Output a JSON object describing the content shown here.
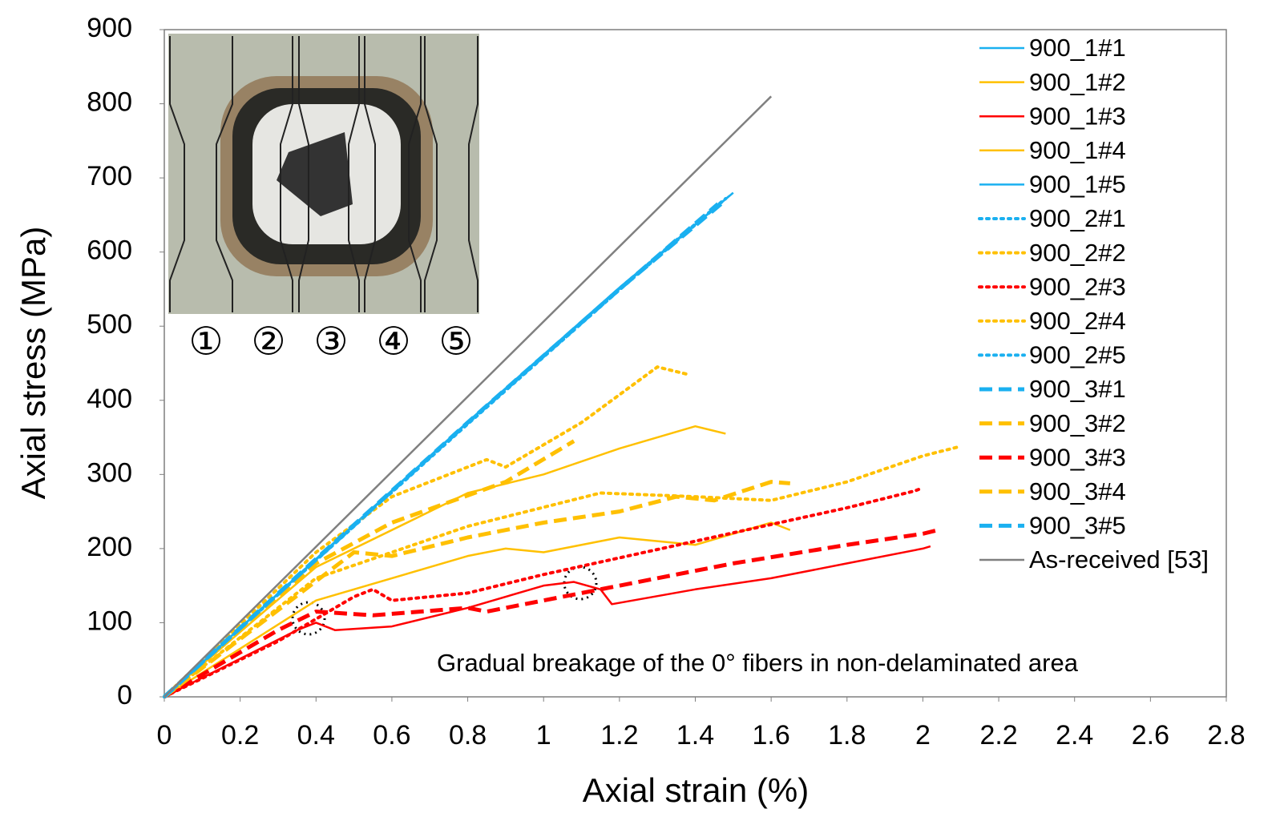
{
  "chart_data": {
    "type": "line",
    "xlabel": "Axial strain (%)",
    "ylabel": "Axial stress (MPa)",
    "xlim": [
      0,
      2.8
    ],
    "ylim": [
      0,
      900
    ],
    "xticks": [
      0,
      0.2,
      0.4,
      0.6,
      0.8,
      1,
      1.2,
      1.4,
      1.6,
      1.8,
      2,
      2.2,
      2.4,
      2.6,
      2.8
    ],
    "yticks": [
      0,
      100,
      200,
      300,
      400,
      500,
      600,
      700,
      800,
      900
    ],
    "legend": "upper right",
    "annotation": "Gradual breakage of the 0° fibers in non-delaminated area",
    "inset_labels": [
      "①",
      "②",
      "③",
      "④",
      "⑤"
    ],
    "inset_label_colors": [
      "#1ab0f0",
      "#ffc000",
      "#ff0000",
      "#ffc000",
      "#1ab0f0"
    ],
    "series": [
      {
        "name": "900_1#1",
        "color": "#1ab0f0",
        "dash": "solid",
        "x": [
          0,
          0.4,
          0.8,
          1.2,
          1.49
        ],
        "values": [
          0,
          186,
          371,
          552,
          676
        ]
      },
      {
        "name": "900_1#2",
        "color": "#ffc000",
        "dash": "solid",
        "x": [
          0,
          0.4,
          0.8,
          1.0,
          1.2,
          1.4,
          1.48
        ],
        "values": [
          0,
          175,
          275,
          300,
          335,
          365,
          355
        ]
      },
      {
        "name": "900_1#3",
        "color": "#ff0000",
        "dash": "solid",
        "x": [
          0,
          0.35,
          0.4,
          0.45,
          0.6,
          0.8,
          1.0,
          1.08,
          1.15,
          1.18,
          1.4,
          1.6,
          1.8,
          2.0,
          2.02
        ],
        "values": [
          0,
          90,
          100,
          90,
          95,
          120,
          150,
          155,
          145,
          125,
          145,
          160,
          180,
          200,
          203
        ]
      },
      {
        "name": "900_1#4",
        "color": "#ffc000",
        "dash": "solid",
        "x": [
          0,
          0.4,
          0.8,
          0.9,
          1.0,
          1.2,
          1.4,
          1.6,
          1.65
        ],
        "values": [
          0,
          130,
          190,
          200,
          195,
          215,
          205,
          235,
          225
        ]
      },
      {
        "name": "900_1#5",
        "color": "#1ab0f0",
        "dash": "solid",
        "x": [
          0,
          0.4,
          0.8,
          1.2,
          1.5
        ],
        "values": [
          0,
          185,
          370,
          550,
          680
        ]
      },
      {
        "name": "900_2#1",
        "color": "#1ab0f0",
        "dash": "dotted",
        "x": [
          0,
          0.4,
          0.8,
          1.2,
          1.48
        ],
        "values": [
          0,
          184,
          368,
          549,
          672
        ]
      },
      {
        "name": "900_2#2",
        "color": "#ffc000",
        "dash": "dotted",
        "x": [
          0,
          0.4,
          0.6,
          0.85,
          0.9,
          1.1,
          1.3,
          1.38
        ],
        "values": [
          0,
          195,
          270,
          320,
          310,
          370,
          445,
          435
        ]
      },
      {
        "name": "900_2#3",
        "color": "#ff0000",
        "dash": "dotted",
        "x": [
          0,
          0.3,
          0.5,
          0.55,
          0.6,
          0.8,
          1.0,
          1.4,
          1.8,
          1.98,
          2.0
        ],
        "values": [
          0,
          75,
          135,
          145,
          130,
          140,
          165,
          210,
          255,
          278,
          282
        ]
      },
      {
        "name": "900_2#4",
        "color": "#ffc000",
        "dash": "dotted",
        "x": [
          0,
          0.4,
          0.8,
          1.15,
          1.4,
          1.6,
          1.8,
          2.0,
          2.1
        ],
        "values": [
          0,
          160,
          230,
          275,
          270,
          265,
          290,
          325,
          338
        ]
      },
      {
        "name": "900_2#5",
        "color": "#1ab0f0",
        "dash": "dotted",
        "x": [
          0,
          0.4,
          0.8,
          1.2,
          1.47
        ],
        "values": [
          0,
          185,
          369,
          551,
          668
        ]
      },
      {
        "name": "900_3#1",
        "color": "#1ab0f0",
        "dash": "dashed",
        "x": [
          0,
          0.4,
          0.8,
          1.2,
          1.48
        ],
        "values": [
          0,
          186,
          370,
          550,
          670
        ]
      },
      {
        "name": "900_3#2",
        "color": "#ffc000",
        "dash": "dashed",
        "x": [
          0,
          0.4,
          0.6,
          0.9,
          1.08
        ],
        "values": [
          0,
          180,
          235,
          290,
          345
        ]
      },
      {
        "name": "900_3#3",
        "color": "#ff0000",
        "dash": "dashed",
        "x": [
          0,
          0.3,
          0.4,
          0.55,
          0.8,
          0.85,
          1.0,
          1.2,
          1.5,
          1.8,
          2.0,
          2.04
        ],
        "values": [
          0,
          90,
          115,
          110,
          120,
          115,
          130,
          150,
          180,
          205,
          220,
          225
        ]
      },
      {
        "name": "900_3#4",
        "color": "#ffc000",
        "dash": "dashed",
        "x": [
          0,
          0.5,
          0.6,
          0.8,
          1.0,
          1.2,
          1.35,
          1.45,
          1.6,
          1.65
        ],
        "values": [
          0,
          195,
          190,
          215,
          235,
          250,
          270,
          265,
          290,
          288
        ]
      },
      {
        "name": "900_3#5",
        "color": "#1ab0f0",
        "dash": "dashed",
        "x": [
          0,
          0.4,
          0.8,
          1.2,
          1.46
        ],
        "values": [
          0,
          185,
          370,
          550,
          665
        ]
      },
      {
        "name": "As-received [53]",
        "color": "#808080",
        "dash": "solid",
        "x": [
          0,
          1.6
        ],
        "values": [
          0,
          810
        ]
      }
    ]
  }
}
